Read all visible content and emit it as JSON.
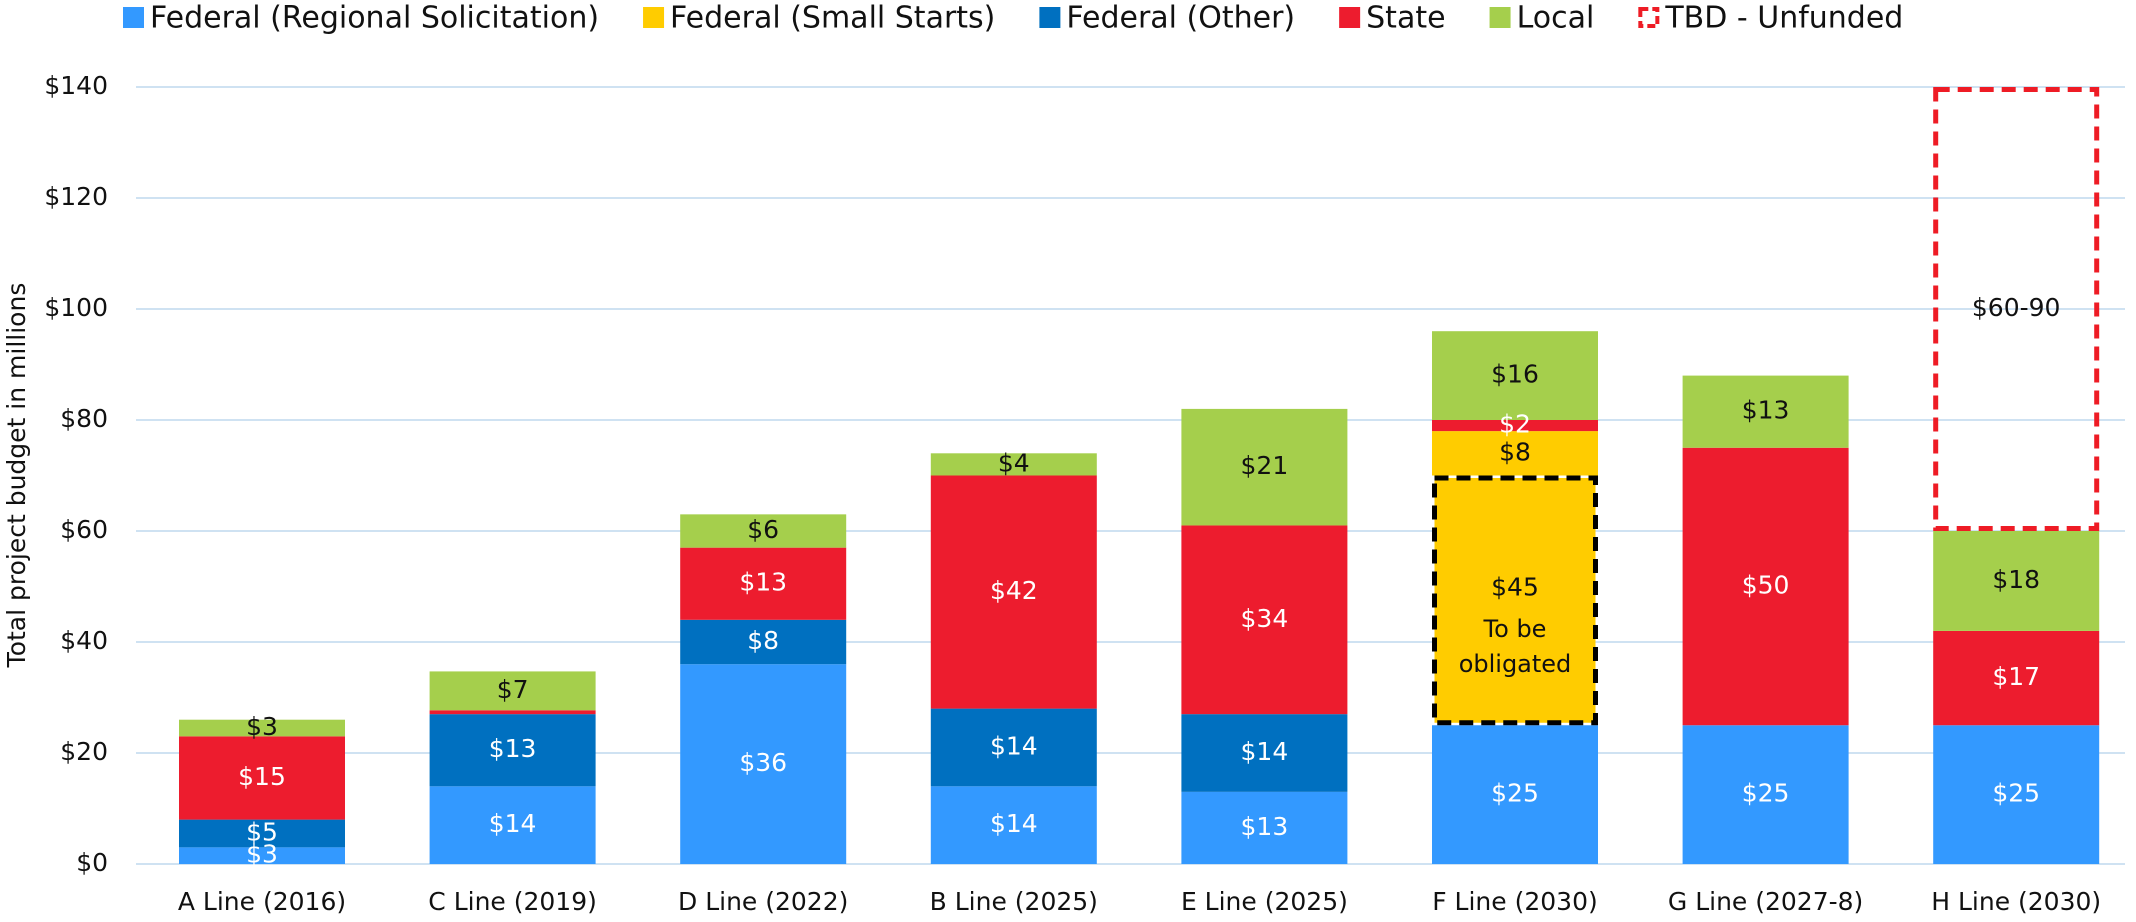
{
  "chart_data": {
    "type": "stacked_bar",
    "y_label": "Total project budget in millions",
    "categories": [
      "A Line (2016)",
      "C Line (2019)",
      "D Line (2022)",
      "B Line (2025)",
      "E Line (2025)",
      "F Line (2030)",
      "G Line (2027-8)",
      "H Line (2030)"
    ],
    "series": [
      {
        "name": "Federal (Regional Solicitation)",
        "color": "#3399ff",
        "label_color": "#ffffff",
        "values": [
          3,
          14,
          36,
          14,
          13,
          25,
          25,
          25
        ],
        "value_labels": [
          "$3",
          "$14",
          "$36",
          "$14",
          "$13",
          "$25",
          "$25",
          "$25"
        ]
      },
      {
        "name": "Federal (Small Starts)",
        "color": "#ffcc00",
        "label_color": "#111111",
        "dashed": "#000000",
        "values": [
          null,
          null,
          null,
          null,
          null,
          45,
          null,
          null
        ],
        "value_labels": [
          null,
          null,
          null,
          null,
          null,
          "$45",
          null,
          null
        ]
      },
      {
        "name": "Federal (Other)",
        "color": "#0070c0",
        "label_color": "#ffffff",
        "values": [
          5,
          13,
          8,
          14,
          14,
          null,
          null,
          null
        ],
        "value_labels": [
          "$5",
          "$13",
          "$8",
          "$14",
          "$14",
          null,
          null,
          null
        ]
      },
      {
        "name": "Federal (Small Starts)",
        "color": "#ffcc00",
        "label_color": "#111111",
        "values": [
          null,
          null,
          null,
          null,
          null,
          8,
          null,
          null
        ],
        "value_labels": [
          null,
          null,
          null,
          null,
          null,
          "$8",
          null,
          null
        ]
      },
      {
        "name": "State",
        "color": "#ed1c2e",
        "label_color": "#ffffff",
        "values": [
          15,
          0.7,
          13,
          42,
          34,
          2,
          50,
          17
        ],
        "value_labels": [
          "$15",
          null,
          "$13",
          "$42",
          "$34",
          "$2",
          "$50",
          "$17"
        ]
      },
      {
        "name": "Local",
        "color": "#a5cf4c",
        "label_color": "#111111",
        "values": [
          3,
          7,
          6,
          4,
          21,
          16,
          13,
          18
        ],
        "value_labels": [
          "$3",
          "$7",
          "$6",
          "$4",
          "$21",
          "$16",
          "$13",
          "$18"
        ]
      },
      {
        "name": "TBD - Unfunded",
        "color": "#ee1c25",
        "label_color": "#111111",
        "dashed": "#ee1c25",
        "fill": false,
        "values": [
          null,
          null,
          null,
          null,
          null,
          null,
          null,
          80
        ],
        "value_labels": [
          null,
          null,
          null,
          null,
          null,
          null,
          null,
          "$60-90"
        ]
      }
    ],
    "annotations": [
      {
        "series": 1,
        "index": 5,
        "text": "To be obligated"
      }
    ],
    "ylim": [
      0,
      140
    ],
    "yticks": [
      {
        "value": 0,
        "label": "$0"
      },
      {
        "value": 20,
        "label": "$20"
      },
      {
        "value": 40,
        "label": "$40"
      },
      {
        "value": 60,
        "label": "$60"
      },
      {
        "value": 80,
        "label": "$80"
      },
      {
        "value": 100,
        "label": "$100"
      },
      {
        "value": 120,
        "label": "$120"
      },
      {
        "value": 140,
        "label": "$140"
      }
    ],
    "grid": true,
    "legend": "top"
  }
}
